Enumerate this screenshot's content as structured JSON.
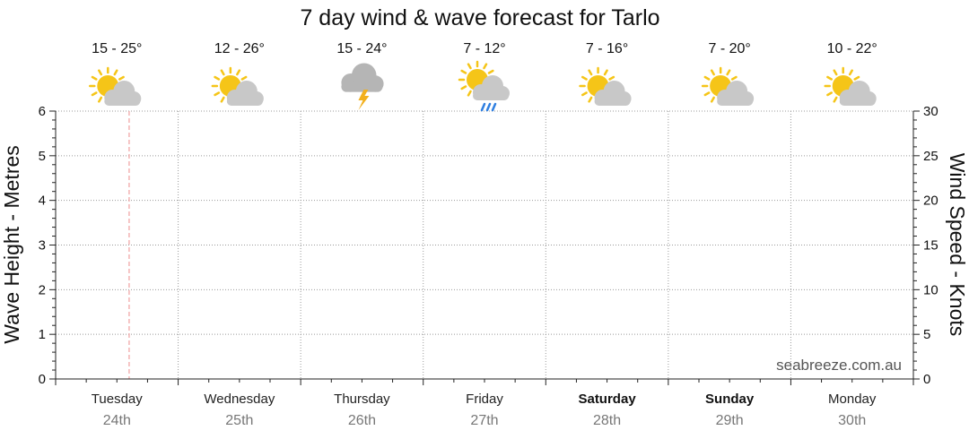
{
  "chart_data": {
    "type": "line",
    "title": "7 day wind & wave forecast for Tarlo",
    "ylabel_left": "Wave Height - Metres",
    "ylabel_right": "Wind Speed - Knots",
    "ylim_left": [
      0,
      6
    ],
    "ylim_right": [
      0,
      30
    ],
    "yticks_left": [
      "0",
      "1",
      "2",
      "3",
      "4",
      "5",
      "6"
    ],
    "yticks_right": [
      "0",
      "5",
      "10",
      "15",
      "20",
      "25",
      "30"
    ],
    "grid": true,
    "now_marker": "Tuesday",
    "days": [
      {
        "day": "Tuesday",
        "date": "24th",
        "temp": "15 - 25°",
        "icon": "partly-cloudy-icon",
        "weekend": false
      },
      {
        "day": "Wednesday",
        "date": "25th",
        "temp": "12 - 26°",
        "icon": "partly-cloudy-icon",
        "weekend": false
      },
      {
        "day": "Thursday",
        "date": "26th",
        "temp": "15 - 24°",
        "icon": "thunderstorm-icon",
        "weekend": false
      },
      {
        "day": "Friday",
        "date": "27th",
        "temp": "7 - 12°",
        "icon": "sun-showers-icon",
        "weekend": false
      },
      {
        "day": "Saturday",
        "date": "28th",
        "temp": "7 - 16°",
        "icon": "partly-cloudy-icon",
        "weekend": true
      },
      {
        "day": "Sunday",
        "date": "29th",
        "temp": "7 - 20°",
        "icon": "partly-cloudy-icon",
        "weekend": true
      },
      {
        "day": "Monday",
        "date": "30th",
        "temp": "10 - 22°",
        "icon": "partly-cloudy-icon",
        "weekend": false
      }
    ],
    "series": []
  },
  "watermark": "seabreeze.com.au",
  "colors": {
    "sun": "#F5C518",
    "cloud": "#C8C8C8",
    "storm_cloud": "#B5B5B5",
    "lightning": "#F2B01E",
    "rain": "#2F7FE0",
    "now_line": "#F0A0A0",
    "grid": "#9A9A9A"
  }
}
